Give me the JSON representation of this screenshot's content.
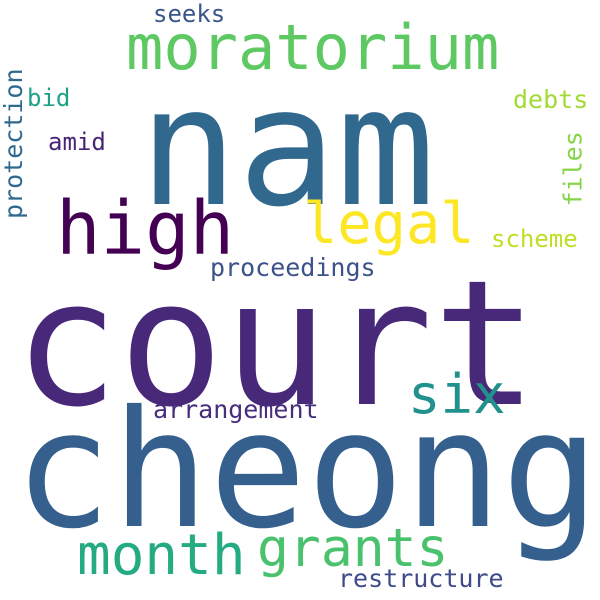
{
  "words": [
    {
      "text": "court",
      "color": "#482878"
    },
    {
      "text": "cheong",
      "color": "#355f8d"
    },
    {
      "text": "nam",
      "color": "#31688e"
    },
    {
      "text": "moratorium",
      "color": "#5ec962"
    },
    {
      "text": "high",
      "color": "#440154"
    },
    {
      "text": "legal",
      "color": "#fde725"
    },
    {
      "text": "six",
      "color": "#21918c"
    },
    {
      "text": "month",
      "color": "#25ab82"
    },
    {
      "text": "grants",
      "color": "#4ac16d"
    },
    {
      "text": "proceedings",
      "color": "#3b528b"
    },
    {
      "text": "arrangement",
      "color": "#472d7b"
    },
    {
      "text": "restructure",
      "color": "#3e4a89"
    },
    {
      "text": "scheme",
      "color": "#bddf26"
    },
    {
      "text": "debts",
      "color": "#a2da37"
    },
    {
      "text": "seeks",
      "color": "#39568c"
    },
    {
      "text": "amid",
      "color": "#482475"
    },
    {
      "text": "bid",
      "color": "#1fa187"
    },
    {
      "text": "protection",
      "color": "#30698e"
    },
    {
      "text": "files",
      "color": "#86d549"
    }
  ]
}
